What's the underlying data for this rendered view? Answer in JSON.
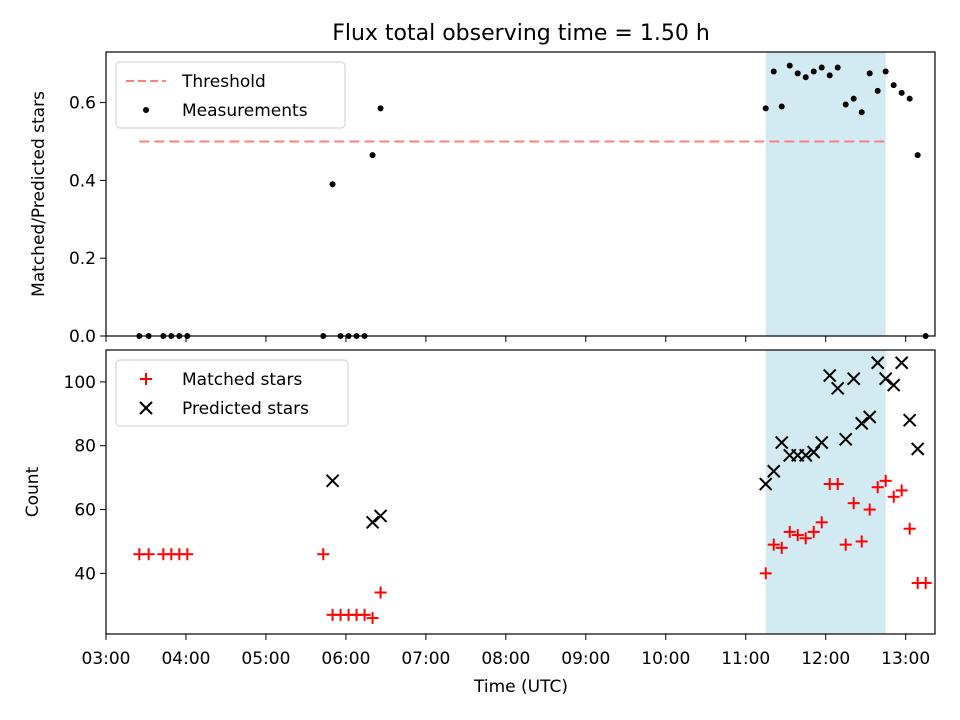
{
  "title": "Flux total observing time = 1.50 h",
  "chart_data": [
    {
      "type": "scatter",
      "ylabel": "Matched/Predicted stars",
      "xlim": [
        "03:00",
        "13:22"
      ],
      "ylim": [
        0,
        0.73
      ],
      "yticks": [
        0.0,
        0.2,
        0.4,
        0.6
      ],
      "ytick_labels": [
        "0.0",
        "0.2",
        "0.4",
        "0.6"
      ],
      "legend_position": "top-left",
      "shaded_interval": {
        "start": "11:15",
        "end": "12:45",
        "color": "#add8e6"
      },
      "series": [
        {
          "name": "Threshold",
          "kind": "dashed-line",
          "color": "#ff7f7f",
          "points": [
            {
              "x": "03:25",
              "y": 0.5
            },
            {
              "x": "12:45",
              "y": 0.5
            }
          ]
        },
        {
          "name": "Measurements",
          "kind": "dots",
          "color": "#000000",
          "points": [
            {
              "x": "03:25",
              "y": 0.0
            },
            {
              "x": "03:32",
              "y": 0.0
            },
            {
              "x": "03:43",
              "y": 0.0
            },
            {
              "x": "03:49",
              "y": 0.0
            },
            {
              "x": "03:55",
              "y": 0.0
            },
            {
              "x": "04:01",
              "y": 0.0
            },
            {
              "x": "05:43",
              "y": 0.0
            },
            {
              "x": "05:50",
              "y": 0.39
            },
            {
              "x": "05:56",
              "y": 0.0
            },
            {
              "x": "06:02",
              "y": 0.0
            },
            {
              "x": "06:08",
              "y": 0.0
            },
            {
              "x": "06:14",
              "y": 0.0
            },
            {
              "x": "06:20",
              "y": 0.465
            },
            {
              "x": "06:26",
              "y": 0.585
            },
            {
              "x": "11:15",
              "y": 0.585
            },
            {
              "x": "11:21",
              "y": 0.68
            },
            {
              "x": "11:27",
              "y": 0.59
            },
            {
              "x": "11:33",
              "y": 0.695
            },
            {
              "x": "11:39",
              "y": 0.675
            },
            {
              "x": "11:45",
              "y": 0.665
            },
            {
              "x": "11:51",
              "y": 0.68
            },
            {
              "x": "11:57",
              "y": 0.69
            },
            {
              "x": "12:03",
              "y": 0.67
            },
            {
              "x": "12:09",
              "y": 0.69
            },
            {
              "x": "12:15",
              "y": 0.595
            },
            {
              "x": "12:21",
              "y": 0.61
            },
            {
              "x": "12:27",
              "y": 0.575
            },
            {
              "x": "12:33",
              "y": 0.675
            },
            {
              "x": "12:39",
              "y": 0.63
            },
            {
              "x": "12:45",
              "y": 0.68
            },
            {
              "x": "12:51",
              "y": 0.645
            },
            {
              "x": "12:57",
              "y": 0.625
            },
            {
              "x": "13:03",
              "y": 0.61
            },
            {
              "x": "13:09",
              "y": 0.465
            },
            {
              "x": "13:15",
              "y": 0.0
            }
          ]
        }
      ]
    },
    {
      "type": "scatter",
      "xlabel": "Time (UTC)",
      "ylabel": "Count",
      "xlim": [
        "03:00",
        "13:22"
      ],
      "ylim": [
        21,
        110
      ],
      "yticks": [
        40,
        60,
        80,
        100
      ],
      "ytick_labels": [
        "40",
        "60",
        "80",
        "100"
      ],
      "xticks": [
        "03:00",
        "04:00",
        "05:00",
        "06:00",
        "07:00",
        "08:00",
        "09:00",
        "10:00",
        "11:00",
        "12:00",
        "13:00"
      ],
      "legend_position": "top-left",
      "shaded_interval": {
        "start": "11:15",
        "end": "12:45",
        "color": "#add8e6"
      },
      "series": [
        {
          "name": "Matched stars",
          "kind": "plus",
          "color": "#ff0000",
          "points": [
            {
              "x": "03:25",
              "y": 46
            },
            {
              "x": "03:32",
              "y": 46
            },
            {
              "x": "03:43",
              "y": 46
            },
            {
              "x": "03:49",
              "y": 46
            },
            {
              "x": "03:55",
              "y": 46
            },
            {
              "x": "04:01",
              "y": 46
            },
            {
              "x": "05:43",
              "y": 46
            },
            {
              "x": "05:50",
              "y": 27
            },
            {
              "x": "05:56",
              "y": 27
            },
            {
              "x": "06:02",
              "y": 27
            },
            {
              "x": "06:08",
              "y": 27
            },
            {
              "x": "06:14",
              "y": 27
            },
            {
              "x": "06:20",
              "y": 26
            },
            {
              "x": "06:26",
              "y": 34
            },
            {
              "x": "11:15",
              "y": 40
            },
            {
              "x": "11:21",
              "y": 49
            },
            {
              "x": "11:27",
              "y": 48
            },
            {
              "x": "11:33",
              "y": 53
            },
            {
              "x": "11:39",
              "y": 52
            },
            {
              "x": "11:45",
              "y": 51
            },
            {
              "x": "11:51",
              "y": 53
            },
            {
              "x": "11:57",
              "y": 56
            },
            {
              "x": "12:03",
              "y": 68
            },
            {
              "x": "12:09",
              "y": 68
            },
            {
              "x": "12:15",
              "y": 49
            },
            {
              "x": "12:21",
              "y": 62
            },
            {
              "x": "12:27",
              "y": 50
            },
            {
              "x": "12:33",
              "y": 60
            },
            {
              "x": "12:39",
              "y": 67
            },
            {
              "x": "12:45",
              "y": 69
            },
            {
              "x": "12:51",
              "y": 64
            },
            {
              "x": "12:57",
              "y": 66
            },
            {
              "x": "13:03",
              "y": 54
            },
            {
              "x": "13:09",
              "y": 37
            },
            {
              "x": "13:15",
              "y": 37
            }
          ]
        },
        {
          "name": "Predicted stars",
          "kind": "x",
          "color": "#000000",
          "points": [
            {
              "x": "05:50",
              "y": 69
            },
            {
              "x": "06:20",
              "y": 56
            },
            {
              "x": "06:26",
              "y": 58
            },
            {
              "x": "11:15",
              "y": 68
            },
            {
              "x": "11:21",
              "y": 72
            },
            {
              "x": "11:27",
              "y": 81
            },
            {
              "x": "11:33",
              "y": 77
            },
            {
              "x": "11:39",
              "y": 77
            },
            {
              "x": "11:45",
              "y": 77
            },
            {
              "x": "11:51",
              "y": 78
            },
            {
              "x": "11:57",
              "y": 81
            },
            {
              "x": "12:03",
              "y": 102
            },
            {
              "x": "12:09",
              "y": 98
            },
            {
              "x": "12:15",
              "y": 82
            },
            {
              "x": "12:21",
              "y": 101
            },
            {
              "x": "12:27",
              "y": 87
            },
            {
              "x": "12:33",
              "y": 89
            },
            {
              "x": "12:39",
              "y": 106
            },
            {
              "x": "12:45",
              "y": 101
            },
            {
              "x": "12:51",
              "y": 99
            },
            {
              "x": "12:57",
              "y": 106
            },
            {
              "x": "13:03",
              "y": 88
            },
            {
              "x": "13:09",
              "y": 79
            }
          ]
        }
      ]
    }
  ]
}
